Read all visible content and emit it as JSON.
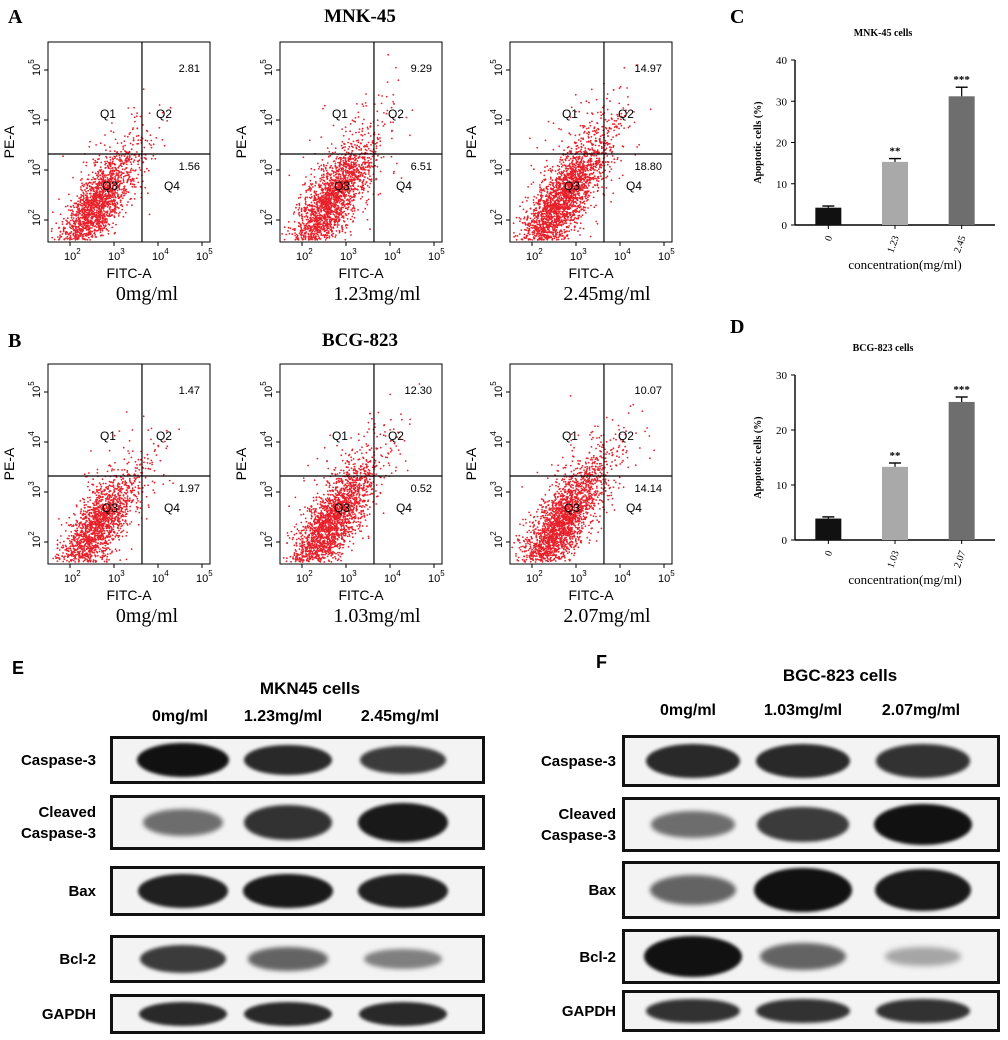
{
  "panels": {
    "A": "A",
    "B": "B",
    "C": "C",
    "D": "D",
    "E": "E",
    "F": "F"
  },
  "flow_titles": {
    "A": "MNK-45",
    "B": "BCG-823"
  },
  "flow_axis": {
    "xlabel": "FITC-A",
    "ylabel": "PE-A",
    "ticks": [
      {
        "base": "10",
        "exp": "2"
      },
      {
        "base": "10",
        "exp": "3"
      },
      {
        "base": "10",
        "exp": "4"
      },
      {
        "base": "10",
        "exp": "5"
      }
    ],
    "quadrants": [
      "Q1",
      "Q2",
      "Q3",
      "Q4"
    ]
  },
  "flow_row_A": [
    {
      "q2": "2.81",
      "q4": "1.56",
      "conc": "0mg/ml",
      "spread": 0.55,
      "density": 0.7
    },
    {
      "q2": "9.29",
      "q4": "6.51",
      "conc": "1.23mg/ml",
      "spread": 0.85,
      "density": 0.85
    },
    {
      "q2": "14.97",
      "q4": "18.80",
      "conc": "2.45mg/ml",
      "spread": 1.0,
      "density": 1.0
    }
  ],
  "flow_row_B": [
    {
      "q2": "1.47",
      "q4": "1.97",
      "conc": "0mg/ml",
      "spread": 0.55,
      "density": 0.7
    },
    {
      "q2": "12.30",
      "q4": "0.52",
      "conc": "1.03mg/ml",
      "spread": 0.9,
      "density": 0.9
    },
    {
      "q2": "10.07",
      "q4": "14.14",
      "conc": "2.07mg/ml",
      "spread": 0.95,
      "density": 0.95
    }
  ],
  "chart_data": [
    {
      "type": "bar",
      "title": "MNK-45 cells",
      "xlabel": "concentration(mg/ml)",
      "ylabel": "Apoptotic cells (%)",
      "categories": [
        "0",
        "1.23",
        "2.45"
      ],
      "values": [
        4.2,
        15.3,
        31.2
      ],
      "errors": [
        0.4,
        0.8,
        2.2
      ],
      "significance": [
        "",
        "**",
        "***"
      ],
      "colors": [
        "#111111",
        "#a9a9a9",
        "#6e6e6e"
      ],
      "ylim": [
        0,
        40
      ],
      "yticks": [
        0,
        10,
        20,
        30,
        40
      ]
    },
    {
      "type": "bar",
      "title": "BCG-823 cells",
      "xlabel": "concentration(mg/ml)",
      "ylabel": "Apoptotic cells (%)",
      "categories": [
        "0",
        "1.03",
        "2.07"
      ],
      "values": [
        3.9,
        13.3,
        25.1
      ],
      "errors": [
        0.3,
        0.7,
        0.9
      ],
      "significance": [
        "",
        "**",
        "***"
      ],
      "colors": [
        "#111111",
        "#a9a9a9",
        "#6e6e6e"
      ],
      "ylim": [
        0,
        30
      ],
      "yticks": [
        0,
        10,
        20,
        30
      ]
    }
  ],
  "western_E": {
    "title": "MKN45 cells",
    "lanes": [
      "0mg/ml",
      "1.23mg/ml",
      "2.45mg/ml"
    ],
    "rows": [
      {
        "label1": "Caspase-3",
        "label2": "",
        "intensity": [
          1.0,
          0.85,
          0.75
        ]
      },
      {
        "label1": "Cleaved",
        "label2": "Caspase-3",
        "intensity": [
          0.45,
          0.8,
          0.95
        ]
      },
      {
        "label1": "Bax",
        "label2": "",
        "intensity": [
          0.9,
          0.95,
          0.9
        ]
      },
      {
        "label1": "Bcl-2",
        "label2": "",
        "intensity": [
          0.75,
          0.5,
          0.35
        ]
      },
      {
        "label1": "GAPDH",
        "label2": "",
        "intensity": [
          0.85,
          0.85,
          0.85
        ]
      }
    ]
  },
  "western_F": {
    "title": "BGC-823 cells",
    "lanes": [
      "0mg/ml",
      "1.03mg/ml",
      "2.07mg/ml"
    ],
    "rows": [
      {
        "label1": "Caspase-3",
        "label2": "",
        "intensity": [
          0.85,
          0.85,
          0.8
        ]
      },
      {
        "label1": "Cleaved",
        "label2": "Caspase-3",
        "intensity": [
          0.45,
          0.75,
          1.0
        ]
      },
      {
        "label1": "Bax",
        "label2": "",
        "intensity": [
          0.5,
          1.0,
          0.95
        ]
      },
      {
        "label1": "Bcl-2",
        "label2": "",
        "intensity": [
          1.0,
          0.5,
          0.12
        ]
      },
      {
        "label1": "GAPDH",
        "label2": "",
        "intensity": [
          0.8,
          0.8,
          0.8
        ]
      }
    ]
  }
}
